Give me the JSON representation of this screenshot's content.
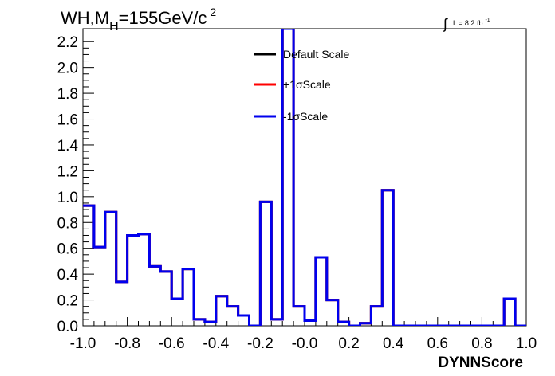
{
  "chart_data": {
    "type": "histogram",
    "title": "WH,M",
    "title_sub": "H",
    "title_rest": "=155GeV/c",
    "title_sup": "2",
    "lumi_label": "L = 8.2 fb",
    "lumi_sup": "-1",
    "integral_symbol": "∫",
    "xlabel": "DYNNScore",
    "ylabel": "",
    "xlim": [
      -1.0,
      1.0
    ],
    "ylim": [
      0,
      2.3
    ],
    "x_ticks": [
      -1.0,
      -0.8,
      -0.6,
      -0.4,
      -0.2,
      0.0,
      0.2,
      0.4,
      0.6,
      0.8,
      1.0
    ],
    "x_tick_labels": [
      "-1.0",
      "-0.8",
      "-0.6",
      "-0.4",
      "-0.2",
      "-0.0",
      "0.2",
      "0.4",
      "0.6",
      "0.8",
      "1.0"
    ],
    "y_ticks": [
      0.0,
      0.2,
      0.4,
      0.6,
      0.8,
      1.0,
      1.2,
      1.4,
      1.6,
      1.8,
      2.0,
      2.2
    ],
    "y_tick_labels": [
      "0.0",
      "0.2",
      "0.4",
      "0.6",
      "0.8",
      "1.0",
      "1.2",
      "1.4",
      "1.6",
      "1.8",
      "2.0",
      "2.2"
    ],
    "bin_edges": [
      -1.0,
      -0.95,
      -0.9,
      -0.85,
      -0.8,
      -0.75,
      -0.7,
      -0.65,
      -0.6,
      -0.55,
      -0.5,
      -0.45,
      -0.4,
      -0.35,
      -0.3,
      -0.25,
      -0.2,
      -0.15,
      -0.1,
      -0.05,
      0.0,
      0.05,
      0.1,
      0.15,
      0.2,
      0.25,
      0.3,
      0.35,
      0.4,
      0.45,
      0.5,
      0.55,
      0.6,
      0.65,
      0.7,
      0.75,
      0.8,
      0.85,
      0.9,
      0.95,
      1.0
    ],
    "series": [
      {
        "name": "Default Scale",
        "color": "#000000",
        "values": [
          0.93,
          0.61,
          0.88,
          0.34,
          0.7,
          0.71,
          0.46,
          0.42,
          0.21,
          0.44,
          0.05,
          0.03,
          0.23,
          0.15,
          0.08,
          0.0,
          0.96,
          0.05,
          2.3,
          0.15,
          0.04,
          0.53,
          0.2,
          0.03,
          0.0,
          0.02,
          0.15,
          1.05,
          0.0,
          0.0,
          0.0,
          0.0,
          0.0,
          0.0,
          0.0,
          0.0,
          0.0,
          0.0,
          0.21,
          0.0
        ]
      },
      {
        "name": "+1σScale",
        "color": "#ff0000",
        "values": [
          0.93,
          0.61,
          0.88,
          0.34,
          0.7,
          0.71,
          0.46,
          0.42,
          0.21,
          0.44,
          0.05,
          0.03,
          0.23,
          0.15,
          0.08,
          0.0,
          0.96,
          0.05,
          2.3,
          0.15,
          0.04,
          0.53,
          0.2,
          0.03,
          0.0,
          0.02,
          0.15,
          1.05,
          0.0,
          0.0,
          0.0,
          0.0,
          0.0,
          0.0,
          0.0,
          0.0,
          0.0,
          0.0,
          0.21,
          0.0
        ]
      },
      {
        "name": "-1σScale",
        "color": "#0000ee",
        "values": [
          0.93,
          0.61,
          0.88,
          0.34,
          0.7,
          0.71,
          0.46,
          0.42,
          0.21,
          0.44,
          0.05,
          0.03,
          0.23,
          0.15,
          0.08,
          0.0,
          0.96,
          0.05,
          2.3,
          0.15,
          0.04,
          0.53,
          0.2,
          0.03,
          0.0,
          0.02,
          0.15,
          1.05,
          0.0,
          0.0,
          0.0,
          0.0,
          0.0,
          0.0,
          0.0,
          0.0,
          0.0,
          0.0,
          0.21,
          0.0
        ]
      }
    ],
    "legend_position": "top-center",
    "grid": false
  }
}
